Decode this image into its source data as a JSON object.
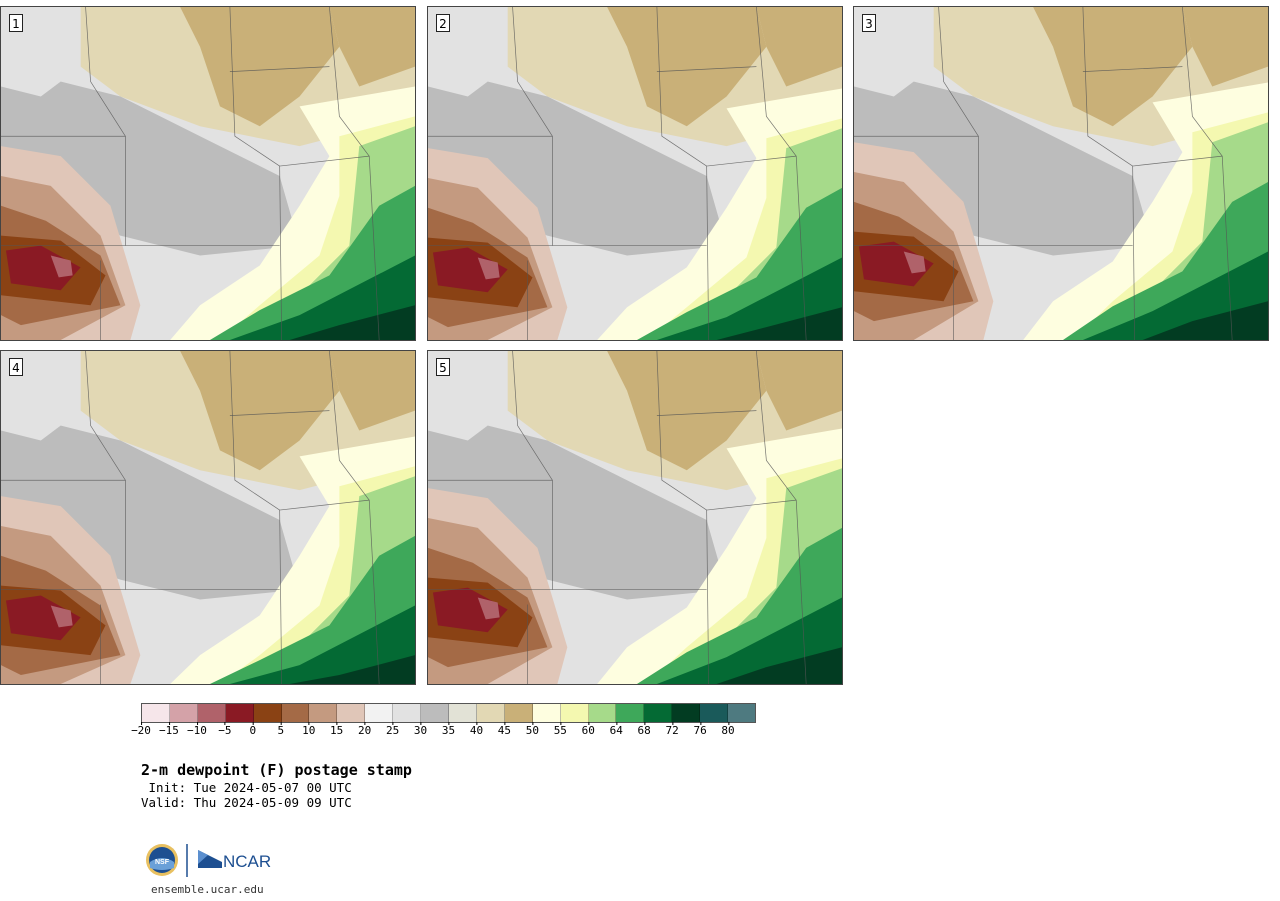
{
  "panels": [
    {
      "label": "1"
    },
    {
      "label": "2"
    },
    {
      "label": "3"
    },
    {
      "label": "4"
    },
    {
      "label": "5"
    }
  ],
  "colorbar": {
    "colors": [
      "#f6e6ea",
      "#d4a2a8",
      "#b0626a",
      "#8a1a24",
      "#8a4214",
      "#a46a46",
      "#c49a80",
      "#e0c6b8",
      "#f2f2f2",
      "#e2e2e2",
      "#bcbcbc",
      "#e2e2d6",
      "#e2d8b4",
      "#c9b078",
      "#fefee0",
      "#f4f8b0",
      "#a6da8a",
      "#3ea85a",
      "#046a34",
      "#023c22",
      "#1a5a5a",
      "#4e7a80"
    ],
    "tick_labels": [
      "−20",
      "−15",
      "−10",
      "−5",
      "0",
      "5",
      "10",
      "15",
      "20",
      "25",
      "30",
      "35",
      "40",
      "45",
      "50",
      "55",
      "60",
      "64",
      "68",
      "72",
      "76",
      "80"
    ]
  },
  "title": "2-m dewpoint (F) postage stamp",
  "init_label": " Init: Tue 2024-05-07 00 UTC",
  "valid_label": "Valid: Thu 2024-05-09 09 UTC",
  "logo_nsf": "NSF",
  "logo_ncar": "NCAR",
  "site": "ensemble.ucar.edu"
}
